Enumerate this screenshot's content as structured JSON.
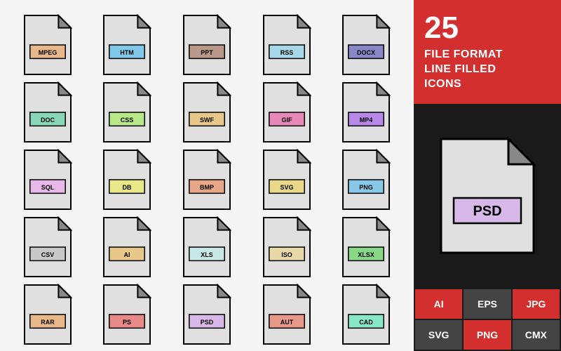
{
  "icons": [
    {
      "label": "MPEG",
      "color": "#e8b88a"
    },
    {
      "label": "HTM",
      "color": "#7fc8e8"
    },
    {
      "label": "PPT",
      "color": "#b89888"
    },
    {
      "label": "RSS",
      "color": "#a8d8e8"
    },
    {
      "label": "DOCX",
      "color": "#8888c8"
    },
    {
      "label": "DOC",
      "color": "#88d8b8"
    },
    {
      "label": "CSS",
      "color": "#b8e888"
    },
    {
      "label": "SWF",
      "color": "#e8c888"
    },
    {
      "label": "GIF",
      "color": "#e888b8"
    },
    {
      "label": "MP4",
      "color": "#b888e8"
    },
    {
      "label": "SQL",
      "color": "#e8b8e8"
    },
    {
      "label": "DB",
      "color": "#e8e888"
    },
    {
      "label": "BMP",
      "color": "#e8a888"
    },
    {
      "label": "SVG",
      "color": "#e8d888"
    },
    {
      "label": "PNG",
      "color": "#88c8e8"
    },
    {
      "label": "CSV",
      "color": "#c8c8c8"
    },
    {
      "label": "AI",
      "color": "#e8c888"
    },
    {
      "label": "XLS",
      "color": "#c8e8e8"
    },
    {
      "label": "ISO",
      "color": "#e8d8a8"
    },
    {
      "label": "XLSX",
      "color": "#88d888"
    },
    {
      "label": "RAR",
      "color": "#e8b888"
    },
    {
      "label": "PS",
      "color": "#e88888"
    },
    {
      "label": "PSD",
      "color": "#d8b8e8"
    },
    {
      "label": "AUT",
      "color": "#e89888"
    },
    {
      "label": "CAD",
      "color": "#88e8c8"
    }
  ],
  "sidebar": {
    "count": "25",
    "line1": "FILE FORMAT",
    "line2": "LINE FILLED",
    "line3": "ICONS",
    "feature": {
      "label": "PSD",
      "color": "#d8b8e8"
    }
  },
  "formats": [
    {
      "label": "AI",
      "bg": "#d32f2f"
    },
    {
      "label": "EPS",
      "bg": "#444444"
    },
    {
      "label": "JPG",
      "bg": "#d32f2f"
    },
    {
      "label": "SVG",
      "bg": "#444444"
    },
    {
      "label": "PNG",
      "bg": "#d32f2f"
    },
    {
      "label": "CMX",
      "bg": "#444444"
    }
  ],
  "style": {
    "file_fill": "#e0e0e0",
    "corner_fill": "#888888",
    "stroke": "#000000",
    "page_bg": "#f5f5f5",
    "sidebar_bg": "#1a1a1a",
    "accent": "#d32f2f"
  }
}
